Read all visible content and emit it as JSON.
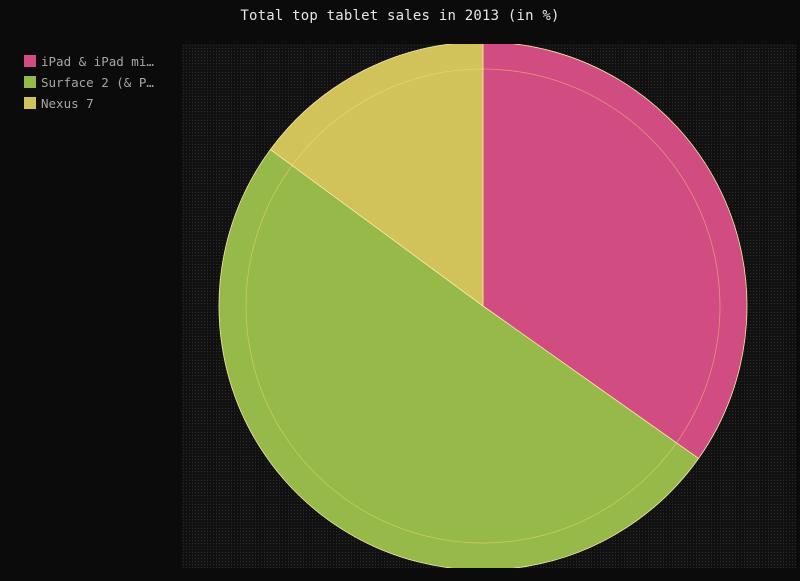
{
  "chart_data": {
    "type": "pie",
    "title": "Total top tablet sales in 2013 (in %)",
    "legend_position": "top-left",
    "slices": [
      {
        "label": "iPad & iPad mi…",
        "value": 34.8,
        "color": "#d14c80"
      },
      {
        "label": "Surface 2 (& P…",
        "value": 50.3,
        "color": "#96b949"
      },
      {
        "label": "Nexus 7",
        "value": 14.9,
        "color": "#d2c25a"
      }
    ]
  }
}
